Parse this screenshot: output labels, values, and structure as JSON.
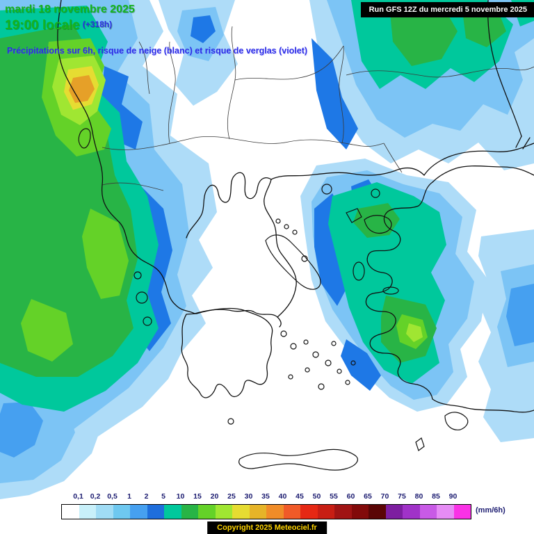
{
  "header": {
    "date": "mardi 18 novembre 2025",
    "time": "19:00 locale",
    "run_offset": "(+318h)",
    "subtitle": "Précipitations sur 6h, risque de neige (blanc) et risque de verglas (violet)",
    "run_info": "Run GFS 12Z du mercredi 5 novembre 2025"
  },
  "legend": {
    "unit": "(mm/6h)",
    "labels": [
      "0,1",
      "0,2",
      "0,5",
      "1",
      "2",
      "5",
      "10",
      "15",
      "20",
      "25",
      "30",
      "35",
      "40",
      "45",
      "50",
      "55",
      "60",
      "65",
      "70",
      "75",
      "80",
      "85",
      "90"
    ],
    "colors": [
      "#FFFFFF",
      "#C8F0FA",
      "#A0DCF5",
      "#6EC8F0",
      "#46A0F0",
      "#1E6EDC",
      "#00C89C",
      "#28B446",
      "#64D228",
      "#A0E632",
      "#E6DC32",
      "#E6B428",
      "#F08C28",
      "#F05A28",
      "#E62814",
      "#C81E14",
      "#A01414",
      "#820A0A",
      "#5A0505",
      "#7D1EA0",
      "#A032C8",
      "#C85AE6",
      "#E68CF5",
      "#FA32E6"
    ]
  },
  "footer": {
    "copyright": "Copyright 2025 Meteociel.fr"
  },
  "palette": {
    "pale_blue": "#AEDCF8",
    "light_blue": "#7CC4F5",
    "med_blue": "#46A0F0",
    "strong_blue": "#1E78E6",
    "teal": "#00C89C",
    "green": "#28B446",
    "bright_green": "#64D228",
    "yellow_green": "#A0E632",
    "yellow": "#E6DC32",
    "orange": "#E6A028"
  }
}
